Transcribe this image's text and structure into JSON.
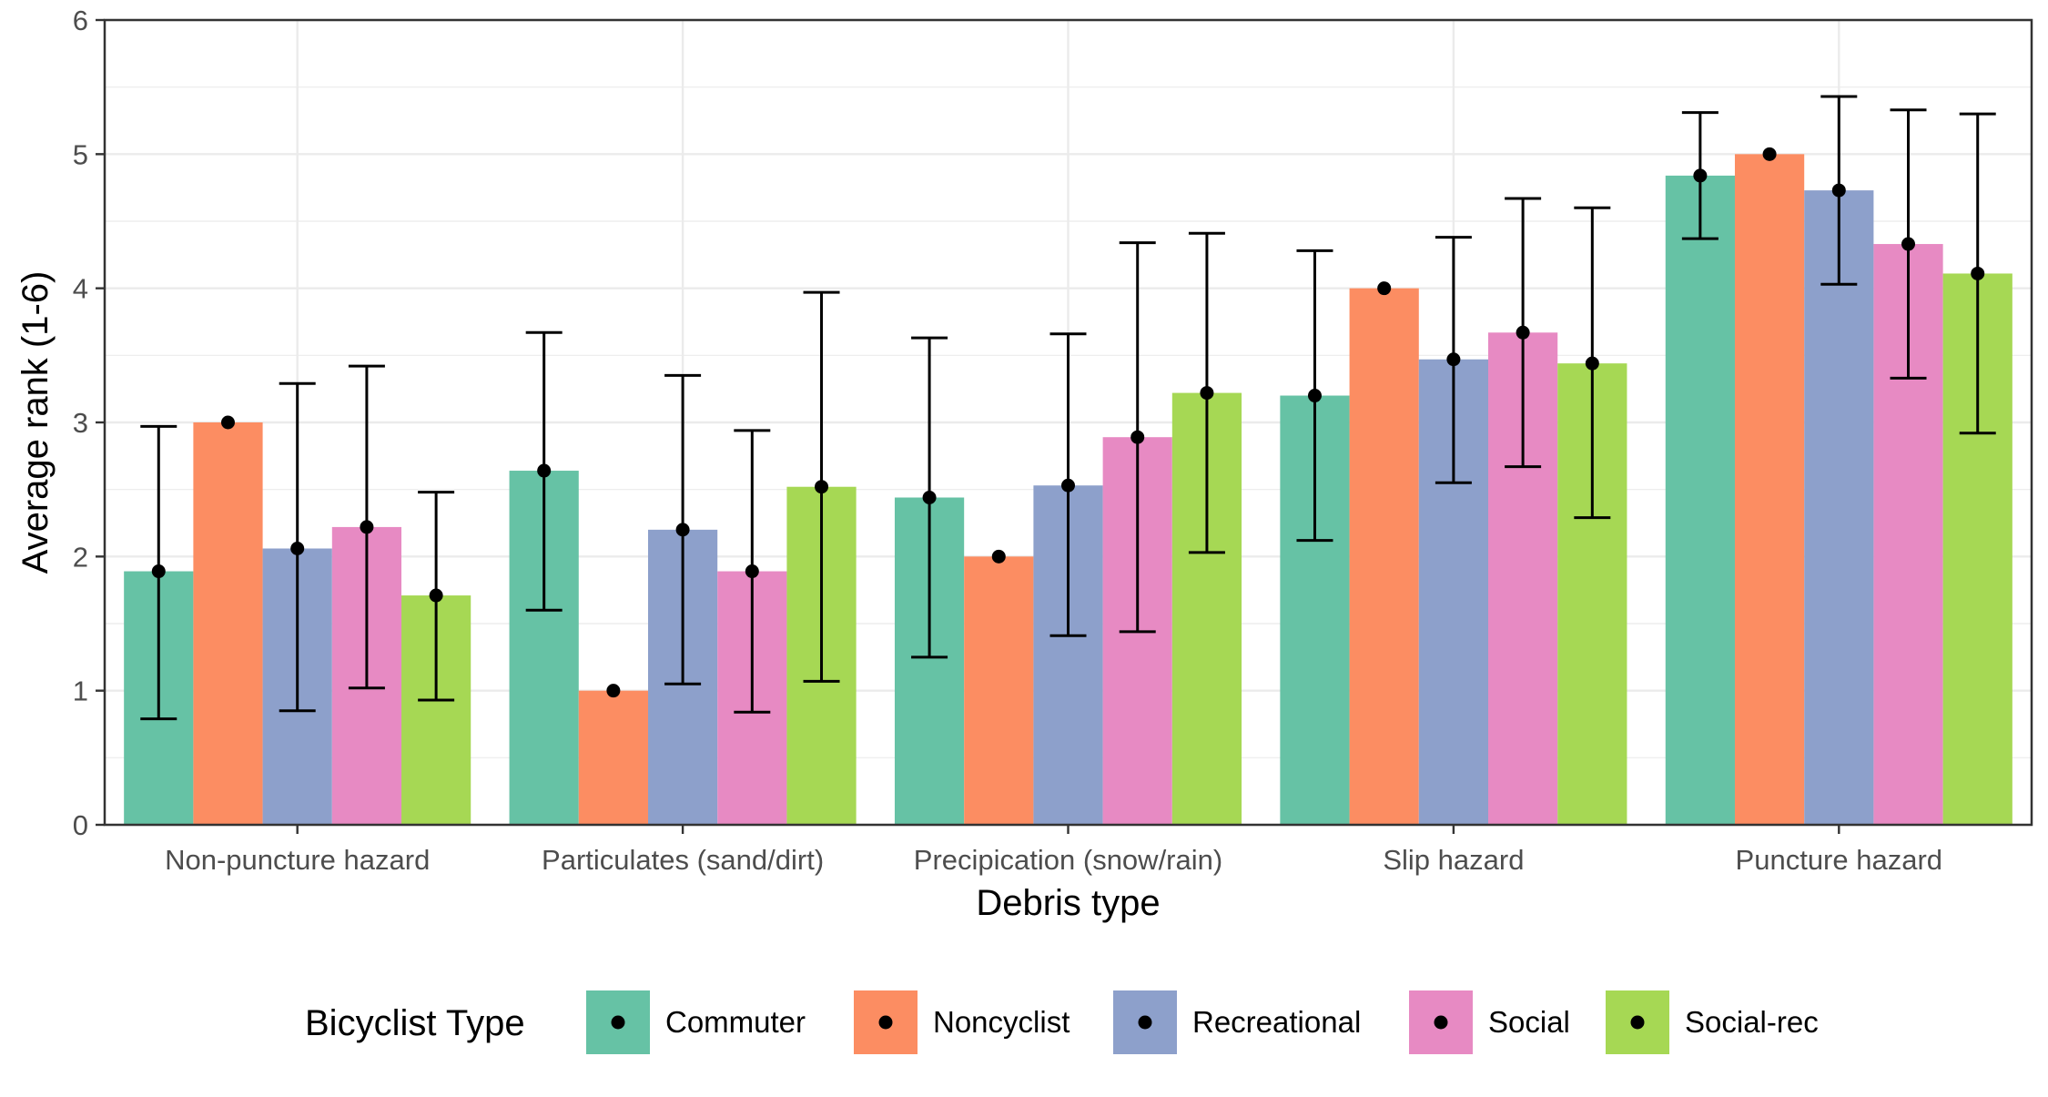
{
  "chart_data": {
    "type": "bar",
    "title": "",
    "xlabel": "Debris type",
    "ylabel": "Average rank (1-6)",
    "ylim": [
      0,
      6
    ],
    "yticks": [
      0,
      1,
      2,
      3,
      4,
      5,
      6
    ],
    "grid": true,
    "legend_position": "bottom",
    "legend_title": "Bicyclist Type",
    "categories": [
      "Non-puncture hazard",
      "Particulates (sand/dirt)",
      "Precipication (snow/rain)",
      "Slip hazard",
      "Puncture hazard"
    ],
    "series": [
      {
        "name": "Commuter",
        "color": "#66c2a5",
        "values": [
          1.89,
          2.64,
          2.44,
          3.2,
          4.84
        ],
        "error_low": [
          0.79,
          1.6,
          1.25,
          2.12,
          4.37
        ],
        "error_high": [
          2.97,
          3.67,
          3.63,
          4.28,
          5.31
        ]
      },
      {
        "name": "Noncyclist",
        "color": "#fc8d62",
        "values": [
          3.0,
          1.0,
          2.0,
          4.0,
          5.0
        ],
        "error_low": [
          3.0,
          1.0,
          2.0,
          4.0,
          5.0
        ],
        "error_high": [
          3.0,
          1.0,
          2.0,
          4.0,
          5.0
        ]
      },
      {
        "name": "Recreational",
        "color": "#8da0cb",
        "values": [
          2.06,
          2.2,
          2.53,
          3.47,
          4.73
        ],
        "error_low": [
          0.85,
          1.05,
          1.41,
          2.55,
          4.03
        ],
        "error_high": [
          3.29,
          3.35,
          3.66,
          4.38,
          5.43
        ]
      },
      {
        "name": "Social",
        "color": "#e78ac3",
        "values": [
          2.22,
          1.89,
          2.89,
          3.67,
          4.33
        ],
        "error_low": [
          1.02,
          0.84,
          1.44,
          2.67,
          3.33
        ],
        "error_high": [
          3.42,
          2.94,
          4.34,
          4.67,
          5.33
        ]
      },
      {
        "name": "Social-rec",
        "color": "#a6d854",
        "values": [
          1.71,
          2.52,
          3.22,
          3.44,
          4.11
        ],
        "error_low": [
          0.93,
          1.07,
          2.03,
          2.29,
          2.92
        ],
        "error_high": [
          2.48,
          3.97,
          4.41,
          4.6,
          5.3
        ]
      }
    ]
  }
}
